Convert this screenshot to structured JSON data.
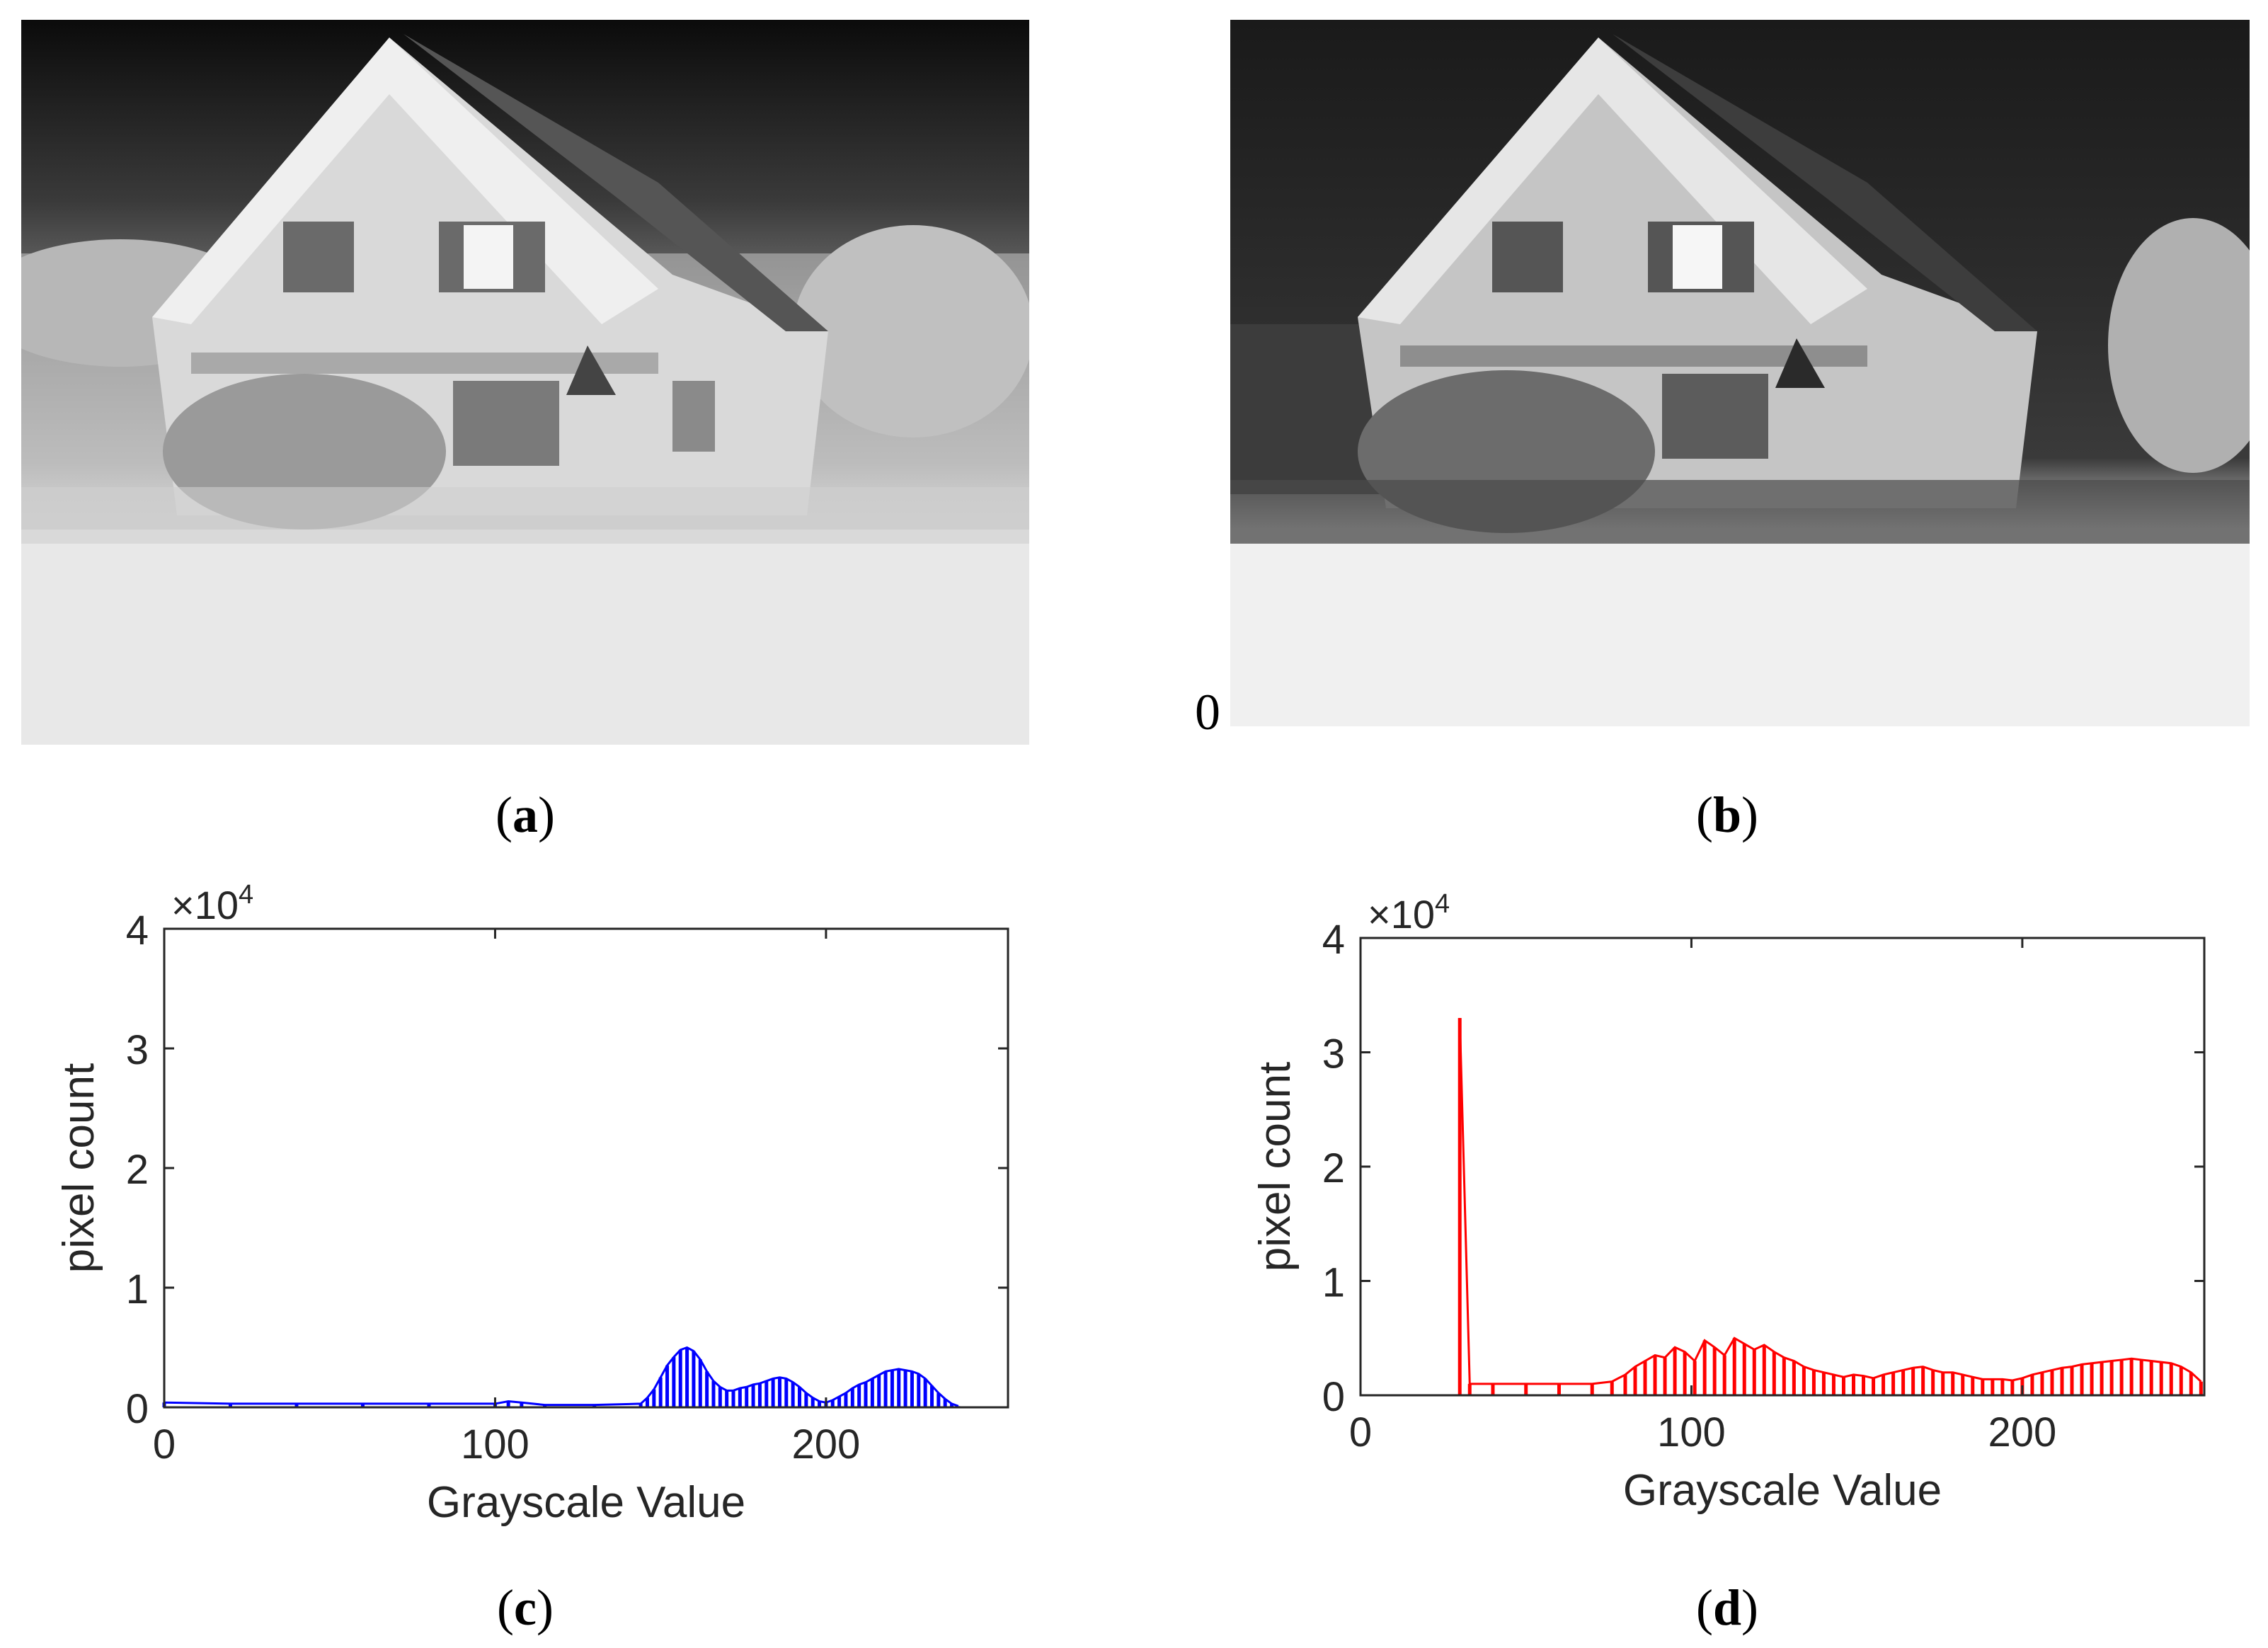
{
  "figure": {
    "panels": [
      {
        "id": "a",
        "label": "a",
        "image": "thermal-house-original"
      },
      {
        "id": "b",
        "label": "b",
        "image": "thermal-house-enhanced"
      },
      {
        "id": "c",
        "label": "c"
      },
      {
        "id": "d",
        "label": "d"
      }
    ],
    "stray_mark": "0"
  },
  "chart_data": [
    {
      "type": "bar",
      "panel": "c",
      "xlabel": "Grayscale Value",
      "ylabel": "pixel count",
      "y_multiplier": "×10^4",
      "xlim": [
        0,
        255
      ],
      "ylim": [
        0,
        4
      ],
      "xticks": [
        0,
        100,
        200
      ],
      "yticks": [
        0,
        1,
        2,
        3,
        4
      ],
      "color": "#0000ff",
      "series": [
        {
          "values": [
            [
              0,
              0.04
            ],
            [
              20,
              0.03
            ],
            [
              40,
              0.03
            ],
            [
              60,
              0.03
            ],
            [
              80,
              0.03
            ],
            [
              100,
              0.03
            ],
            [
              104,
              0.05
            ],
            [
              108,
              0.04
            ],
            [
              115,
              0.02
            ],
            [
              130,
              0.02
            ],
            [
              144,
              0.03
            ],
            [
              146,
              0.08
            ],
            [
              148,
              0.15
            ],
            [
              150,
              0.25
            ],
            [
              152,
              0.35
            ],
            [
              154,
              0.42
            ],
            [
              156,
              0.48
            ],
            [
              158,
              0.5
            ],
            [
              160,
              0.47
            ],
            [
              162,
              0.4
            ],
            [
              164,
              0.3
            ],
            [
              166,
              0.22
            ],
            [
              168,
              0.17
            ],
            [
              170,
              0.14
            ],
            [
              172,
              0.14
            ],
            [
              174,
              0.16
            ],
            [
              176,
              0.17
            ],
            [
              178,
              0.19
            ],
            [
              180,
              0.2
            ],
            [
              182,
              0.22
            ],
            [
              184,
              0.24
            ],
            [
              186,
              0.25
            ],
            [
              188,
              0.24
            ],
            [
              190,
              0.21
            ],
            [
              192,
              0.17
            ],
            [
              194,
              0.12
            ],
            [
              196,
              0.08
            ],
            [
              198,
              0.05
            ],
            [
              200,
              0.04
            ],
            [
              202,
              0.06
            ],
            [
              204,
              0.09
            ],
            [
              206,
              0.12
            ],
            [
              208,
              0.16
            ],
            [
              210,
              0.19
            ],
            [
              212,
              0.21
            ],
            [
              214,
              0.24
            ],
            [
              216,
              0.27
            ],
            [
              218,
              0.3
            ],
            [
              220,
              0.31
            ],
            [
              222,
              0.32
            ],
            [
              224,
              0.31
            ],
            [
              226,
              0.3
            ],
            [
              228,
              0.28
            ],
            [
              230,
              0.24
            ],
            [
              232,
              0.18
            ],
            [
              234,
              0.12
            ],
            [
              236,
              0.07
            ],
            [
              238,
              0.03
            ],
            [
              240,
              0.01
            ]
          ]
        }
      ]
    },
    {
      "type": "bar",
      "panel": "d",
      "xlabel": "Grayscale Value",
      "ylabel": "pixel count",
      "y_multiplier": "×10^4",
      "xlim": [
        0,
        255
      ],
      "ylim": [
        0,
        4
      ],
      "xticks": [
        0,
        100,
        200
      ],
      "yticks": [
        0,
        1,
        2,
        3,
        4
      ],
      "color": "#ff0000",
      "series": [
        {
          "values": [
            [
              30,
              3.3
            ],
            [
              33,
              0.1
            ],
            [
              40,
              0.1
            ],
            [
              50,
              0.1
            ],
            [
              60,
              0.1
            ],
            [
              70,
              0.1
            ],
            [
              76,
              0.12
            ],
            [
              80,
              0.18
            ],
            [
              83,
              0.25
            ],
            [
              86,
              0.3
            ],
            [
              89,
              0.35
            ],
            [
              92,
              0.33
            ],
            [
              95,
              0.42
            ],
            [
              98,
              0.38
            ],
            [
              101,
              0.3
            ],
            [
              104,
              0.48
            ],
            [
              107,
              0.42
            ],
            [
              110,
              0.35
            ],
            [
              113,
              0.5
            ],
            [
              116,
              0.45
            ],
            [
              119,
              0.4
            ],
            [
              122,
              0.44
            ],
            [
              125,
              0.38
            ],
            [
              128,
              0.33
            ],
            [
              131,
              0.3
            ],
            [
              134,
              0.25
            ],
            [
              137,
              0.22
            ],
            [
              140,
              0.2
            ],
            [
              143,
              0.18
            ],
            [
              146,
              0.16
            ],
            [
              149,
              0.18
            ],
            [
              152,
              0.17
            ],
            [
              155,
              0.15
            ],
            [
              158,
              0.18
            ],
            [
              161,
              0.2
            ],
            [
              164,
              0.22
            ],
            [
              167,
              0.24
            ],
            [
              170,
              0.25
            ],
            [
              173,
              0.22
            ],
            [
              176,
              0.2
            ],
            [
              179,
              0.2
            ],
            [
              182,
              0.18
            ],
            [
              185,
              0.16
            ],
            [
              188,
              0.14
            ],
            [
              191,
              0.14
            ],
            [
              194,
              0.14
            ],
            [
              197,
              0.13
            ],
            [
              200,
              0.15
            ],
            [
              203,
              0.18
            ],
            [
              206,
              0.2
            ],
            [
              209,
              0.22
            ],
            [
              212,
              0.24
            ],
            [
              215,
              0.25
            ],
            [
              218,
              0.27
            ],
            [
              221,
              0.28
            ],
            [
              224,
              0.29
            ],
            [
              227,
              0.3
            ],
            [
              230,
              0.31
            ],
            [
              233,
              0.32
            ],
            [
              236,
              0.31
            ],
            [
              239,
              0.3
            ],
            [
              242,
              0.29
            ],
            [
              245,
              0.28
            ],
            [
              248,
              0.25
            ],
            [
              251,
              0.2
            ],
            [
              254,
              0.12
            ]
          ]
        }
      ]
    }
  ]
}
